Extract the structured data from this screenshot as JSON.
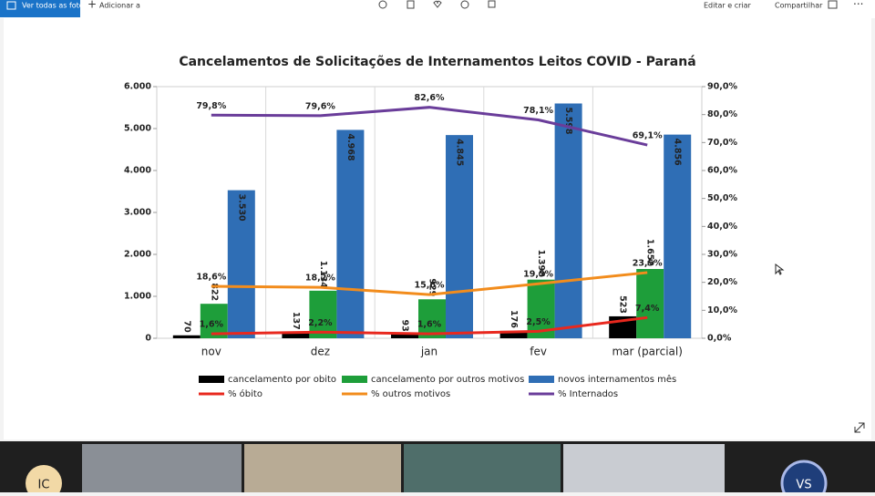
{
  "toolbar": {
    "view_all": "Ver todas as fotos",
    "add_to": "Adicionar a",
    "edit_create": "Editar e criar",
    "share": "Compartilhar"
  },
  "chart_data": {
    "type": "bar",
    "title": "Cancelamentos de Solicitações de Internamentos Leitos COVID - Paraná",
    "categories": [
      "nov",
      "dez",
      "jan",
      "fev",
      "mar (parcial)"
    ],
    "ylim": [
      0,
      6000
    ],
    "yticks": [
      0,
      {
        "value": 1000,
        "label": "1.000"
      },
      {
        "value": 2000,
        "label": "2.000"
      },
      {
        "value": 3000,
        "label": "3.000"
      },
      {
        "value": 4000,
        "label": "4.000"
      },
      {
        "value": 5000,
        "label": "5.000"
      },
      {
        "value": 6000,
        "label": "6.000"
      }
    ],
    "y2lim": [
      0,
      90
    ],
    "y2ticks": [
      {
        "value": 0,
        "label": "0,0%"
      },
      {
        "value": 10,
        "label": "10,0%"
      },
      {
        "value": 20,
        "label": "20,0%"
      },
      {
        "value": 30,
        "label": "30,0%"
      },
      {
        "value": 40,
        "label": "40,0%"
      },
      {
        "value": 50,
        "label": "50,0%"
      },
      {
        "value": 60,
        "label": "60,0%"
      },
      {
        "value": 70,
        "label": "70,0%"
      },
      {
        "value": 80,
        "label": "80,0%"
      },
      {
        "value": 90,
        "label": "90,0%"
      }
    ],
    "series": [
      {
        "name": "cancelamento por obito",
        "type": "bar",
        "color": "#000000",
        "values": [
          70,
          137,
          93,
          176,
          523
        ]
      },
      {
        "name": "cancelamento por outros motivos",
        "type": "bar",
        "color": "#1e9e3a",
        "values": [
          822,
          1134,
          929,
          1398,
          1652
        ],
        "value_labels": [
          "822",
          "1.134",
          "929",
          "1.398",
          "1.652"
        ]
      },
      {
        "name": "novos internamentos mês",
        "type": "bar",
        "color": "#2f6eb5",
        "values": [
          3530,
          4968,
          4845,
          5598,
          4856
        ],
        "value_labels": [
          "3.530",
          "4.968",
          "4.845",
          "5.598",
          "4.856"
        ]
      },
      {
        "name": "% óbito",
        "type": "line",
        "axis": "y2",
        "color": "#e8281e",
        "values": [
          1.6,
          2.2,
          1.6,
          2.5,
          7.4
        ],
        "value_labels": [
          "1,6%",
          "2,2%",
          "1,6%",
          "2,5%",
          "7,4%"
        ]
      },
      {
        "name": "% outros motivos",
        "type": "line",
        "axis": "y2",
        "color": "#f28c1c",
        "values": [
          18.6,
          18.2,
          15.6,
          19.5,
          23.5
        ],
        "value_labels": [
          "18,6%",
          "18,2%",
          "15,6%",
          "19,5%",
          "23,5%"
        ]
      },
      {
        "name": "% Internados",
        "type": "line",
        "axis": "y2",
        "color": "#6a3d9a",
        "values": [
          79.8,
          79.6,
          82.6,
          78.1,
          69.1
        ],
        "value_labels": [
          "79,8%",
          "79,6%",
          "82,6%",
          "78,1%",
          "69,1%"
        ]
      }
    ]
  },
  "participants": {
    "left": "IC",
    "right": "VS"
  }
}
